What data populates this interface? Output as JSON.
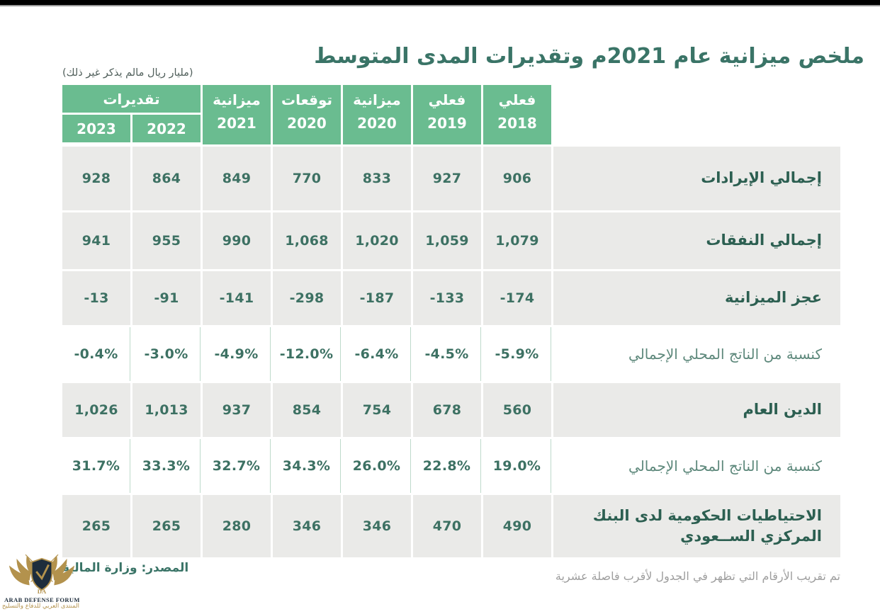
{
  "page": {
    "title": "ملخص ميزانية عام 2021م وتقديرات المدى المتوسط",
    "unit_note": "(مليار ريال مالم يذكر غير ذلك)",
    "source": "المصدر: وزارة المالية",
    "footnote": "تم تقريب الأرقام التي تظهر في الجدول لأقرب فاصلة عشرية"
  },
  "watermark": {
    "name_en": "ARAB DEFENSE FORUM",
    "name_ar": "المنتدى العربي للدفاع والتسليح"
  },
  "colors": {
    "header_green": "#6abc90",
    "cell_gray": "#eaeae8",
    "value_text": "#3d7163",
    "label_text": "#2c5f51",
    "percent_label_text": "#5d887b",
    "percent_separator": "#bedacb",
    "title_text": "#3a7467",
    "footnote_gray": "#9e9e9e",
    "top_bar": "#000000",
    "logo_navy": "#1e2d3c",
    "logo_gold": "#b3924d"
  },
  "chart_data": {
    "type": "table",
    "title": "ملخص ميزانية عام 2021م وتقديرات المدى المتوسط",
    "unit_note": "(مليار ريال مالم يذكر غير ذلك)",
    "layout": {
      "direction": "rtl",
      "label_column": "right",
      "columns_visual_order": "left-to-right as listed: 2023 → 2018"
    },
    "column_group_label": "تقديرات",
    "columns": [
      {
        "top": "تقديرات",
        "year": "2023"
      },
      {
        "top": "تقديرات",
        "year": "2022"
      },
      {
        "top": "ميزانية",
        "year": "2021"
      },
      {
        "top": "توقعات",
        "year": "2020"
      },
      {
        "top": "ميزانية",
        "year": "2020"
      },
      {
        "top": "فعلي",
        "year": "2019"
      },
      {
        "top": "فعلي",
        "year": "2018"
      }
    ],
    "rows": [
      {
        "label": "إجمالي الإيرادات",
        "style": "value",
        "values": [
          "928",
          "864",
          "849",
          "770",
          "833",
          "927",
          "906"
        ]
      },
      {
        "label": "إجمالي النفقات",
        "style": "value",
        "values": [
          "941",
          "955",
          "990",
          "1,068",
          "1,020",
          "1,059",
          "1,079"
        ]
      },
      {
        "label": "عجز الميزانية",
        "style": "value",
        "values": [
          "-13",
          "-91",
          "-141",
          "-298",
          "-187",
          "-133",
          "-174"
        ]
      },
      {
        "label": "كنسبة من الناتج المحلي الإجمالي",
        "style": "percent",
        "values": [
          "-0.4%",
          "-3.0%",
          "-4.9%",
          "-12.0%",
          "-6.4%",
          "-4.5%",
          "-5.9%"
        ]
      },
      {
        "label": "الدين العام",
        "style": "value",
        "values": [
          "1,026",
          "1,013",
          "937",
          "854",
          "754",
          "678",
          "560"
        ]
      },
      {
        "label": "كنسبة من الناتج المحلي الإجمالي",
        "style": "percent",
        "values": [
          "31.7%",
          "33.3%",
          "32.7%",
          "34.3%",
          "26.0%",
          "22.8%",
          "19.0%"
        ]
      },
      {
        "label": "الاحتياطيات الحكومية لدى البنك المركزي الســعودي",
        "style": "value",
        "values": [
          "265",
          "265",
          "280",
          "346",
          "346",
          "470",
          "490"
        ]
      }
    ],
    "source": "المصدر: وزارة المالية",
    "footnote": "تم تقريب الأرقام التي تظهر في الجدول لأقرب فاصلة عشرية"
  }
}
